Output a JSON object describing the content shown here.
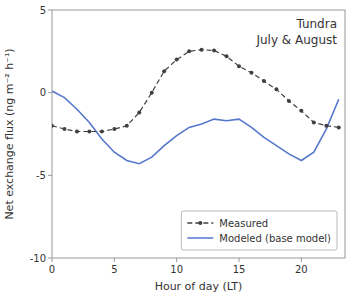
{
  "chart_data": {
    "type": "line",
    "annotations": [
      "Tundra",
      "July & August"
    ],
    "x_label": "Hour of day (LT)",
    "y_label": "Net exchange flux (ng m⁻² h⁻¹)",
    "x": [
      0,
      1,
      2,
      3,
      4,
      5,
      6,
      7,
      8,
      9,
      10,
      11,
      12,
      13,
      14,
      15,
      16,
      17,
      18,
      19,
      20,
      21,
      22,
      23
    ],
    "series": [
      {
        "name": "Measured",
        "color": "#404040",
        "line_style": "dashed",
        "marker": "circle",
        "values": [
          -2.0,
          -2.2,
          -2.35,
          -2.35,
          -2.35,
          -2.2,
          -2.0,
          -1.2,
          0.0,
          1.3,
          2.0,
          2.5,
          2.6,
          2.55,
          2.2,
          1.6,
          1.2,
          0.7,
          0.2,
          -0.5,
          -1.1,
          -1.8,
          -2.0,
          -2.1
        ]
      },
      {
        "name": "Modeled (base model)",
        "color": "#5577cc",
        "line_style": "solid",
        "marker": "none",
        "values": [
          0.1,
          -0.3,
          -1.0,
          -1.8,
          -2.8,
          -3.6,
          -4.1,
          -4.3,
          -3.9,
          -3.2,
          -2.6,
          -2.1,
          -1.9,
          -1.6,
          -1.7,
          -1.6,
          -2.1,
          -2.7,
          -3.2,
          -3.7,
          -4.1,
          -3.6,
          -2.2,
          -0.4
        ]
      }
    ],
    "xlim": [
      0,
      23.5
    ],
    "ylim": [
      -10,
      5
    ],
    "xticks": [
      0,
      5,
      10,
      15,
      20
    ],
    "yticks": [
      -10,
      -5,
      0,
      5
    ],
    "grid": false,
    "legend": "lower right"
  }
}
